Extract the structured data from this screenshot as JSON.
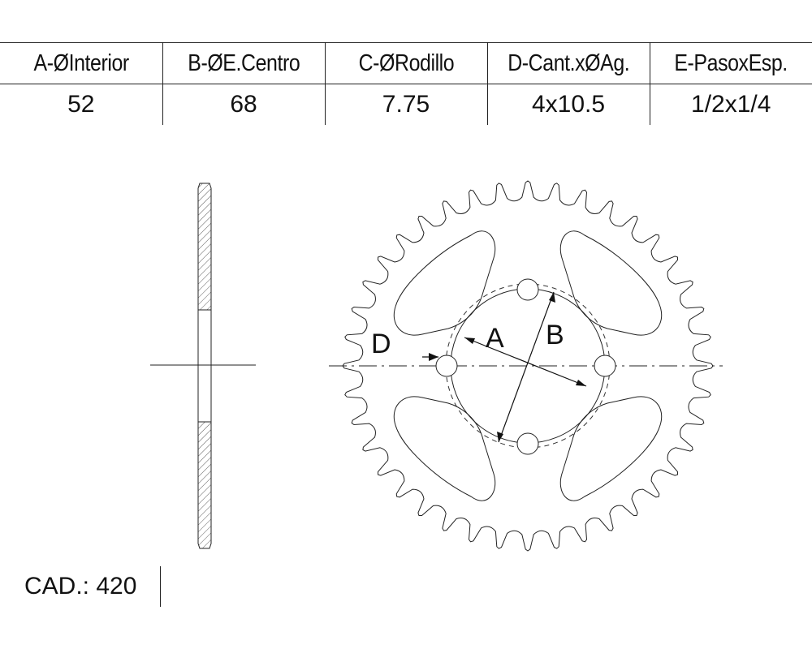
{
  "spec_table": {
    "headers": [
      "A-ØInterior",
      "B-ØE.Centro",
      "C-ØRodillo",
      "D-Cant.xØAg.",
      "E-PasoxEsp."
    ],
    "values": [
      "52",
      "68",
      "7.75",
      "4x10.5",
      "1/2x1/4"
    ]
  },
  "cad": "CAD.: 420",
  "drawing": {
    "label_a": "A",
    "label_b": "B",
    "label_d": "D",
    "teeth": 40,
    "bolt_holes": 4,
    "cutouts": 4
  }
}
